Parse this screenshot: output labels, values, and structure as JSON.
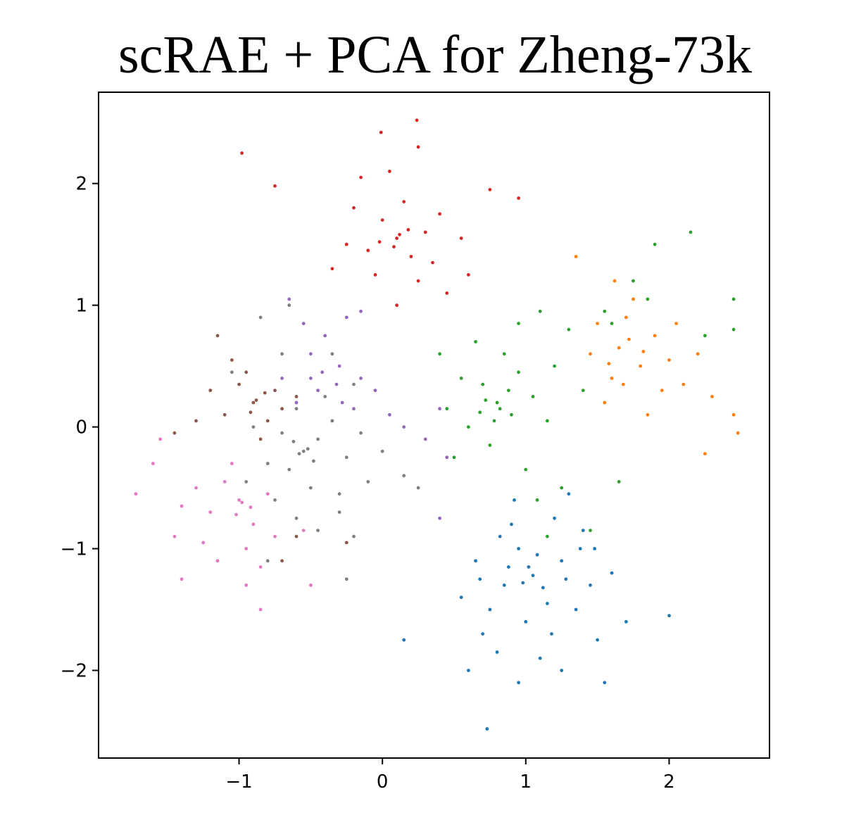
{
  "chart_data": {
    "type": "scatter",
    "title": "scRAE + PCA for Zheng-73k",
    "xlabel": "",
    "ylabel": "",
    "xlim": [
      -1.98,
      2.7
    ],
    "ylim": [
      -2.72,
      2.75
    ],
    "xticks": [
      -1,
      0,
      1,
      2
    ],
    "yticks": [
      -2,
      -1,
      0,
      1,
      2
    ],
    "xtick_labels": [
      "−1",
      "0",
      "1",
      "2"
    ],
    "ytick_labels": [
      "−2",
      "−1",
      "0",
      "1",
      "2"
    ],
    "grid": false,
    "legend": "none",
    "series": [
      {
        "color": "#1f77b4",
        "values": [
          [
            1.05,
            -1.22
          ],
          [
            0.95,
            -1.0
          ],
          [
            1.15,
            -1.45
          ],
          [
            0.85,
            -1.3
          ],
          [
            1.25,
            -1.1
          ],
          [
            1.0,
            -1.6
          ],
          [
            0.75,
            -1.5
          ],
          [
            1.35,
            -1.5
          ],
          [
            0.9,
            -0.8
          ],
          [
            1.2,
            -0.75
          ],
          [
            1.45,
            -1.3
          ],
          [
            0.65,
            -1.1
          ],
          [
            1.1,
            -1.9
          ],
          [
            0.8,
            -1.85
          ],
          [
            1.5,
            -1.75
          ],
          [
            0.6,
            -2.0
          ],
          [
            1.55,
            -2.1
          ],
          [
            0.92,
            -0.6
          ],
          [
            1.3,
            -0.55
          ],
          [
            0.73,
            -2.48
          ],
          [
            1.02,
            -1.15
          ],
          [
            1.12,
            -1.32
          ],
          [
            0.98,
            -1.28
          ],
          [
            1.08,
            -1.05
          ],
          [
            0.88,
            -1.15
          ],
          [
            1.28,
            -1.25
          ],
          [
            1.38,
            -1.0
          ],
          [
            0.7,
            -1.7
          ],
          [
            1.6,
            -1.2
          ],
          [
            1.7,
            -1.6
          ],
          [
            0.15,
            -1.75
          ],
          [
            2.0,
            -1.55
          ],
          [
            0.55,
            -1.4
          ],
          [
            1.4,
            -0.85
          ],
          [
            1.18,
            -1.7
          ],
          [
            0.95,
            -2.1
          ],
          [
            1.25,
            -2.0
          ],
          [
            0.68,
            -1.25
          ],
          [
            1.48,
            -1.0
          ],
          [
            0.82,
            -0.9
          ]
        ]
      },
      {
        "color": "#ff7f0e",
        "values": [
          [
            1.65,
            0.65
          ],
          [
            1.5,
            0.85
          ],
          [
            1.8,
            0.5
          ],
          [
            1.7,
            0.9
          ],
          [
            1.6,
            0.4
          ],
          [
            1.9,
            0.75
          ],
          [
            2.0,
            0.55
          ],
          [
            1.45,
            0.6
          ],
          [
            1.75,
            1.05
          ],
          [
            2.1,
            0.35
          ],
          [
            1.55,
            0.2
          ],
          [
            2.2,
            0.6
          ],
          [
            1.35,
            1.4
          ],
          [
            2.3,
            0.25
          ],
          [
            2.45,
            0.1
          ],
          [
            2.48,
            -0.05
          ],
          [
            2.25,
            -0.22
          ],
          [
            1.85,
            0.1
          ],
          [
            1.62,
            1.2
          ],
          [
            1.95,
            0.3
          ],
          [
            1.72,
            0.72
          ],
          [
            1.58,
            0.52
          ],
          [
            1.82,
            0.62
          ],
          [
            1.68,
            0.35
          ],
          [
            2.05,
            0.85
          ]
        ]
      },
      {
        "color": "#2ca02c",
        "values": [
          [
            0.8,
            0.2
          ],
          [
            0.7,
            0.35
          ],
          [
            0.9,
            0.1
          ],
          [
            0.6,
            0.0
          ],
          [
            0.95,
            0.45
          ],
          [
            0.75,
            -0.15
          ],
          [
            1.05,
            0.25
          ],
          [
            0.55,
            0.4
          ],
          [
            0.85,
            0.6
          ],
          [
            1.15,
            0.05
          ],
          [
            0.65,
            0.7
          ],
          [
            1.2,
            0.5
          ],
          [
            0.45,
            0.15
          ],
          [
            1.3,
            0.8
          ],
          [
            0.5,
            -0.25
          ],
          [
            1.0,
            -0.35
          ],
          [
            1.4,
            0.3
          ],
          [
            0.4,
            0.6
          ],
          [
            1.55,
            0.95
          ],
          [
            1.75,
            1.2
          ],
          [
            1.9,
            1.5
          ],
          [
            2.15,
            1.6
          ],
          [
            1.6,
            0.85
          ],
          [
            1.85,
            1.05
          ],
          [
            2.45,
            1.05
          ],
          [
            2.45,
            0.8
          ],
          [
            1.1,
            0.95
          ],
          [
            0.95,
            0.85
          ],
          [
            1.25,
            -0.5
          ],
          [
            0.72,
            0.22
          ],
          [
            0.82,
            0.15
          ],
          [
            0.88,
            0.3
          ],
          [
            0.68,
            0.12
          ],
          [
            0.78,
            0.05
          ],
          [
            1.08,
            -0.6
          ],
          [
            1.15,
            -0.9
          ],
          [
            1.45,
            -0.85
          ],
          [
            1.65,
            -0.45
          ],
          [
            2.25,
            0.75
          ]
        ]
      },
      {
        "color": "#d62728",
        "values": [
          [
            0.1,
            1.55
          ],
          [
            0.0,
            1.7
          ],
          [
            0.2,
            1.4
          ],
          [
            -0.1,
            1.45
          ],
          [
            0.15,
            1.85
          ],
          [
            0.3,
            1.6
          ],
          [
            -0.05,
            1.25
          ],
          [
            0.25,
            1.2
          ],
          [
            0.05,
            2.1
          ],
          [
            -0.2,
            1.8
          ],
          [
            0.4,
            1.75
          ],
          [
            0.35,
            1.35
          ],
          [
            -0.25,
            1.5
          ],
          [
            0.45,
            1.1
          ],
          [
            -0.15,
            2.05
          ],
          [
            0.55,
            1.55
          ],
          [
            0.6,
            1.25
          ],
          [
            0.1,
            1.0
          ],
          [
            -0.35,
            1.3
          ],
          [
            0.25,
            2.3
          ],
          [
            -0.01,
            2.42
          ],
          [
            0.24,
            2.52
          ],
          [
            -0.75,
            1.98
          ],
          [
            -0.98,
            2.25
          ],
          [
            0.95,
            1.88
          ],
          [
            0.75,
            1.95
          ],
          [
            0.12,
            1.58
          ],
          [
            0.08,
            1.48
          ],
          [
            0.18,
            1.62
          ],
          [
            -0.02,
            1.52
          ]
        ]
      },
      {
        "color": "#9467bd",
        "values": [
          [
            -0.45,
            0.3
          ],
          [
            -0.3,
            0.5
          ],
          [
            -0.6,
            0.2
          ],
          [
            -0.2,
            0.15
          ],
          [
            -0.5,
            0.6
          ],
          [
            -0.15,
            0.4
          ],
          [
            -0.35,
            0.05
          ],
          [
            -0.7,
            0.4
          ],
          [
            -0.05,
            0.3
          ],
          [
            -0.4,
            0.75
          ],
          [
            0.05,
            0.1
          ],
          [
            -0.25,
            0.9
          ],
          [
            -0.55,
            0.85
          ],
          [
            0.15,
            0.0
          ],
          [
            0.3,
            -0.1
          ],
          [
            0.4,
            0.15
          ],
          [
            -0.65,
            1.05
          ],
          [
            -0.15,
            0.95
          ],
          [
            0.45,
            -0.25
          ],
          [
            0.4,
            -0.75
          ],
          [
            -0.42,
            0.45
          ],
          [
            -0.32,
            0.35
          ],
          [
            -0.5,
            0.4
          ],
          [
            -0.28,
            0.2
          ]
        ]
      },
      {
        "color": "#8c564b",
        "values": [
          [
            -0.9,
            0.2
          ],
          [
            -0.8,
            0.05
          ],
          [
            -1.0,
            0.35
          ],
          [
            -0.75,
            0.3
          ],
          [
            -1.1,
            0.1
          ],
          [
            -0.95,
            0.45
          ],
          [
            -0.7,
            0.15
          ],
          [
            -1.05,
            0.55
          ],
          [
            -1.2,
            0.3
          ],
          [
            -0.85,
            -0.1
          ],
          [
            -1.15,
            0.75
          ],
          [
            -1.3,
            0.05
          ],
          [
            -1.45,
            -0.05
          ],
          [
            -0.6,
            0.25
          ],
          [
            -0.88,
            0.22
          ],
          [
            -0.92,
            0.12
          ],
          [
            -0.82,
            0.28
          ],
          [
            -0.25,
            -0.95
          ],
          [
            -0.7,
            -1.1
          ],
          [
            -0.6,
            -0.9
          ]
        ]
      },
      {
        "color": "#e377c2",
        "values": [
          [
            -1.0,
            -0.6
          ],
          [
            -0.9,
            -0.8
          ],
          [
            -1.1,
            -0.45
          ],
          [
            -0.8,
            -0.55
          ],
          [
            -1.2,
            -0.7
          ],
          [
            -0.95,
            -1.0
          ],
          [
            -1.05,
            -0.3
          ],
          [
            -0.75,
            -0.9
          ],
          [
            -1.3,
            -0.5
          ],
          [
            -1.4,
            -0.65
          ],
          [
            -1.25,
            -0.95
          ],
          [
            -0.85,
            -1.15
          ],
          [
            -1.15,
            -1.1
          ],
          [
            -1.6,
            -0.3
          ],
          [
            -1.72,
            -0.55
          ],
          [
            -1.45,
            -0.9
          ],
          [
            -1.4,
            -1.25
          ],
          [
            -0.95,
            -1.3
          ],
          [
            -0.85,
            -1.5
          ],
          [
            -0.5,
            -1.3
          ],
          [
            -0.55,
            -0.85
          ],
          [
            -1.55,
            -0.1
          ],
          [
            -0.98,
            -0.62
          ],
          [
            -1.02,
            -0.72
          ],
          [
            -0.92,
            -0.66
          ]
        ]
      },
      {
        "color": "#7f7f7f",
        "values": [
          [
            -0.55,
            -0.2
          ],
          [
            -0.45,
            -0.1
          ],
          [
            -0.65,
            -0.35
          ],
          [
            -0.35,
            0.05
          ],
          [
            -0.7,
            -0.05
          ],
          [
            -0.5,
            -0.5
          ],
          [
            -0.25,
            -0.25
          ],
          [
            -0.8,
            -0.3
          ],
          [
            -0.4,
            0.25
          ],
          [
            -0.6,
            0.15
          ],
          [
            -0.3,
            -0.55
          ],
          [
            -0.15,
            -0.05
          ],
          [
            -0.75,
            -0.6
          ],
          [
            -0.9,
            0.0
          ],
          [
            -0.2,
            0.35
          ],
          [
            0.0,
            -0.2
          ],
          [
            -0.1,
            -0.45
          ],
          [
            -0.95,
            -0.45
          ],
          [
            -0.6,
            -0.75
          ],
          [
            -0.45,
            -0.85
          ],
          [
            -0.35,
            0.6
          ],
          [
            -0.7,
            0.6
          ],
          [
            0.15,
            -0.4
          ],
          [
            0.25,
            -0.5
          ],
          [
            -1.05,
            0.45
          ],
          [
            -0.85,
            0.9
          ],
          [
            -0.65,
            1.0
          ],
          [
            -0.52,
            -0.18
          ],
          [
            -0.58,
            -0.22
          ],
          [
            -0.48,
            -0.28
          ],
          [
            -0.62,
            -0.12
          ],
          [
            -0.3,
            -0.7
          ],
          [
            -0.2,
            -0.9
          ],
          [
            -0.8,
            -1.1
          ],
          [
            -0.25,
            -1.25
          ]
        ]
      }
    ]
  }
}
